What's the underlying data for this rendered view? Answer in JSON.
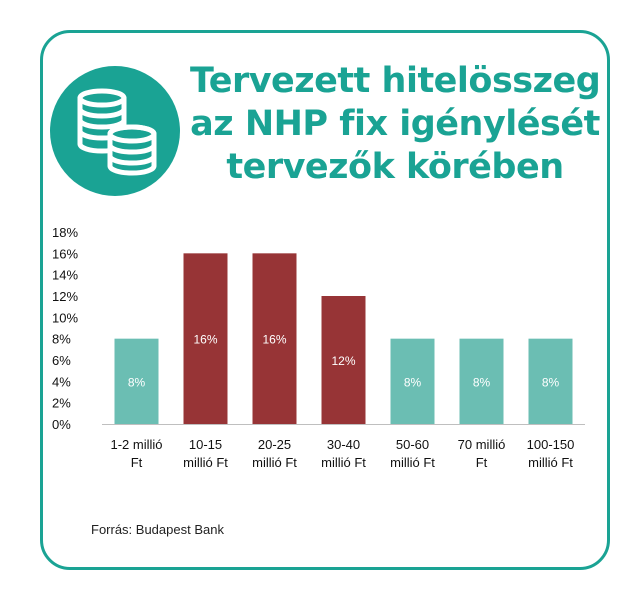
{
  "title_lines": [
    "Tervezett hitelösszeg",
    "az NHP fix igénylését",
    "tervezők körében"
  ],
  "source": "Forrás: Budapest Bank",
  "icon": "coins-stack-icon",
  "colors": {
    "accent": "#1aa394",
    "bar_teal": "#6bbeb3",
    "bar_red": "#973436"
  },
  "chart_data": {
    "type": "bar",
    "categories": [
      [
        "1-2 millió",
        "Ft"
      ],
      [
        "10-15",
        "millió Ft"
      ],
      [
        "20-25",
        "millió Ft"
      ],
      [
        "30-40",
        "millió Ft"
      ],
      [
        "50-60",
        "millió Ft"
      ],
      [
        "70 millió",
        "Ft"
      ],
      [
        "100-150",
        "millió Ft"
      ]
    ],
    "values": [
      8,
      16,
      16,
      12,
      8,
      8,
      8
    ],
    "data_labels": [
      "8%",
      "16%",
      "16%",
      "12%",
      "8%",
      "8%",
      "8%"
    ],
    "bar_colors": [
      "#6bbeb3",
      "#973436",
      "#973436",
      "#973436",
      "#6bbeb3",
      "#6bbeb3",
      "#6bbeb3"
    ],
    "ylim": [
      0,
      18
    ],
    "yticks": [
      "0%",
      "2%",
      "4%",
      "6%",
      "8%",
      "10%",
      "12%",
      "14%",
      "16%",
      "18%"
    ],
    "title": "",
    "xlabel": "",
    "ylabel": "",
    "grid": false,
    "legend": "none"
  }
}
